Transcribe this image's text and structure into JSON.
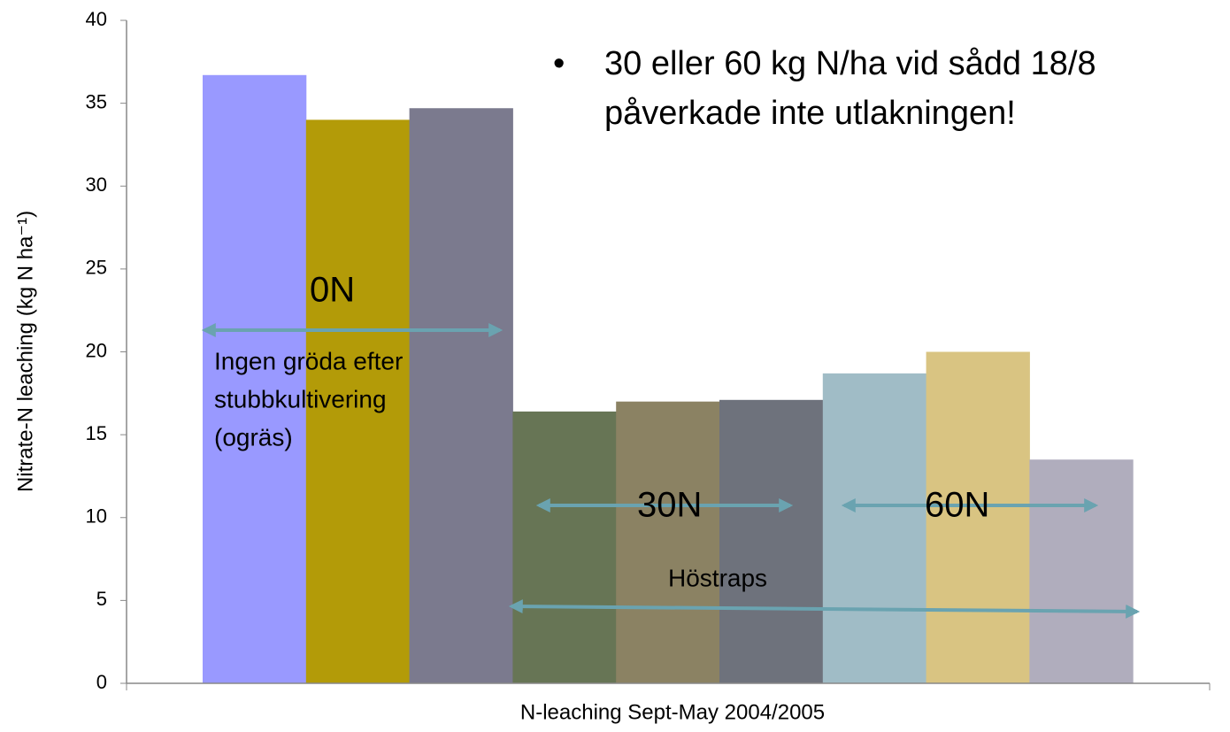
{
  "chart_data": {
    "type": "bar",
    "ylabel": "Nitrate-N leaching (kg N ha⁻¹)",
    "xlabel": "N-leaching Sept-May 2004/2005",
    "categories": [
      null,
      null,
      null,
      null,
      null,
      null,
      null,
      null,
      null
    ],
    "values": [
      36.7,
      34,
      34.7,
      16.4,
      17,
      17.1,
      18.7,
      20,
      13.5
    ],
    "colors": [
      "#9999ff",
      "#b39b08",
      "#7b7a8e",
      "#677555",
      "#8b8263",
      "#6e727c",
      "#a0bcc6",
      "#d9c482",
      "#b0adbd"
    ],
    "ylim": [
      0,
      40
    ],
    "yticks": [
      0,
      5,
      10,
      15,
      20,
      25,
      30,
      35,
      40
    ],
    "grid": false,
    "annotations": {
      "bullet": [
        "30 eller 60 kg N/ha vid sådd 18/8",
        "påverkade inte utlakningen!"
      ],
      "group0": "0N",
      "group0_note": [
        "Ingen gröda efter",
        "stubbkultivering",
        "(ogräs)"
      ],
      "group30": "30N",
      "group60": "60N",
      "crop": "Höstraps"
    }
  }
}
